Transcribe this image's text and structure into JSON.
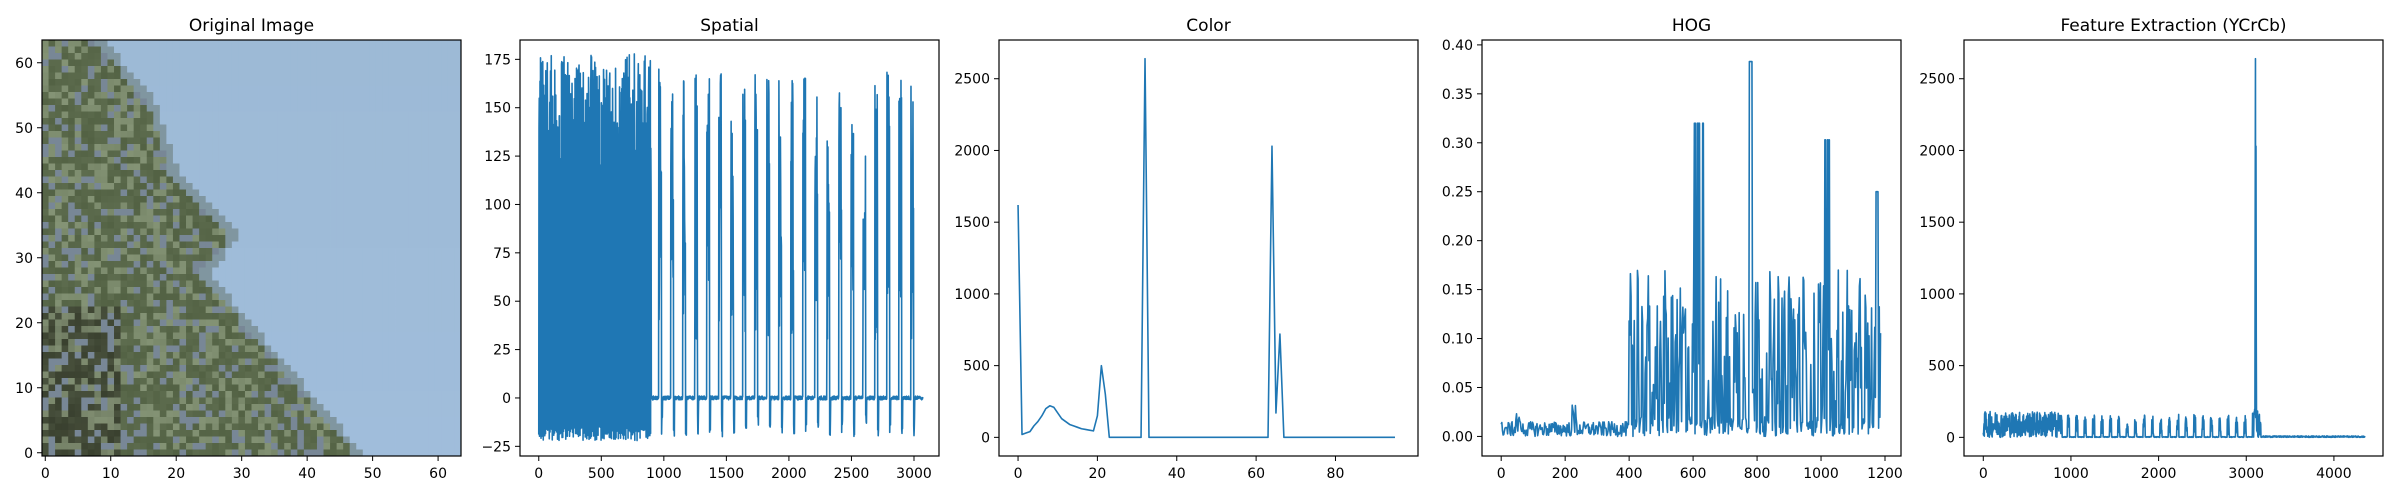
{
  "chart_data": [
    {
      "type": "image",
      "title": "Original Image",
      "x_ticks": [
        "0",
        "10",
        "20",
        "30",
        "40",
        "50",
        "60"
      ],
      "y_ticks": [
        "0",
        "10",
        "20",
        "30",
        "40",
        "50",
        "60"
      ],
      "xlim": [
        -0.5,
        63.5
      ],
      "ylim": [
        63.5,
        -0.5
      ],
      "description_colors": {
        "sky": "#9dbad6",
        "foliage_dark": "#3d4a2c",
        "foliage_light": "#8f9b78"
      }
    },
    {
      "type": "line",
      "title": "Spatial",
      "x_ticks": [
        "0",
        "500",
        "1000",
        "1500",
        "2000",
        "2500",
        "3000"
      ],
      "y_ticks": [
        "−25",
        "0",
        "25",
        "50",
        "75",
        "100",
        "125",
        "150",
        "175"
      ],
      "xlim": [
        -150,
        3200
      ],
      "ylim": [
        -30,
        185
      ],
      "n_points": 3072,
      "y_min": -22,
      "y_max": 178,
      "color": "#1f77b4"
    },
    {
      "type": "line",
      "title": "Color",
      "x_ticks": [
        "0",
        "20",
        "40",
        "60",
        "80"
      ],
      "y_ticks": [
        "0",
        "500",
        "1000",
        "1500",
        "2000",
        "2500"
      ],
      "xlim": [
        -4.8,
        100.8
      ],
      "ylim": [
        -130,
        2770
      ],
      "x": [
        0,
        1,
        2,
        3,
        4,
        5,
        6,
        7,
        8,
        9,
        10,
        11,
        12,
        13,
        14,
        15,
        16,
        17,
        18,
        19,
        20,
        21,
        22,
        23,
        24,
        30,
        31,
        32,
        33,
        34,
        62,
        63,
        64,
        65,
        66,
        67,
        68,
        69,
        95
      ],
      "y": [
        1620,
        20,
        30,
        40,
        80,
        110,
        150,
        200,
        220,
        210,
        170,
        130,
        110,
        90,
        80,
        70,
        60,
        55,
        50,
        45,
        150,
        500,
        300,
        0,
        0,
        0,
        0,
        2640,
        0,
        0,
        0,
        0,
        2030,
        170,
        720,
        0,
        0,
        0,
        0
      ],
      "color": "#1f77b4"
    },
    {
      "type": "line",
      "title": "HOG",
      "x_ticks": [
        "0",
        "200",
        "400",
        "600",
        "800",
        "1000",
        "1200"
      ],
      "y_ticks": [
        "0.00",
        "0.05",
        "0.10",
        "0.15",
        "0.20",
        "0.25",
        "0.30",
        "0.35",
        "0.40"
      ],
      "xlim": [
        -60,
        1250
      ],
      "ylim": [
        -0.02,
        0.405
      ],
      "n_points": 1188,
      "y_max": 0.383,
      "color": "#1f77b4"
    },
    {
      "type": "line",
      "title": "Feature Extraction (YCrCb)",
      "x_ticks": [
        "0",
        "1000",
        "2000",
        "3000",
        "4000"
      ],
      "y_ticks": [
        "0",
        "500",
        "1000",
        "1500",
        "2000",
        "2500"
      ],
      "xlim": [
        -220,
        4560
      ],
      "ylim": [
        -130,
        2770
      ],
      "n_points": 4356,
      "y_max": 2640,
      "color": "#1f77b4"
    }
  ]
}
